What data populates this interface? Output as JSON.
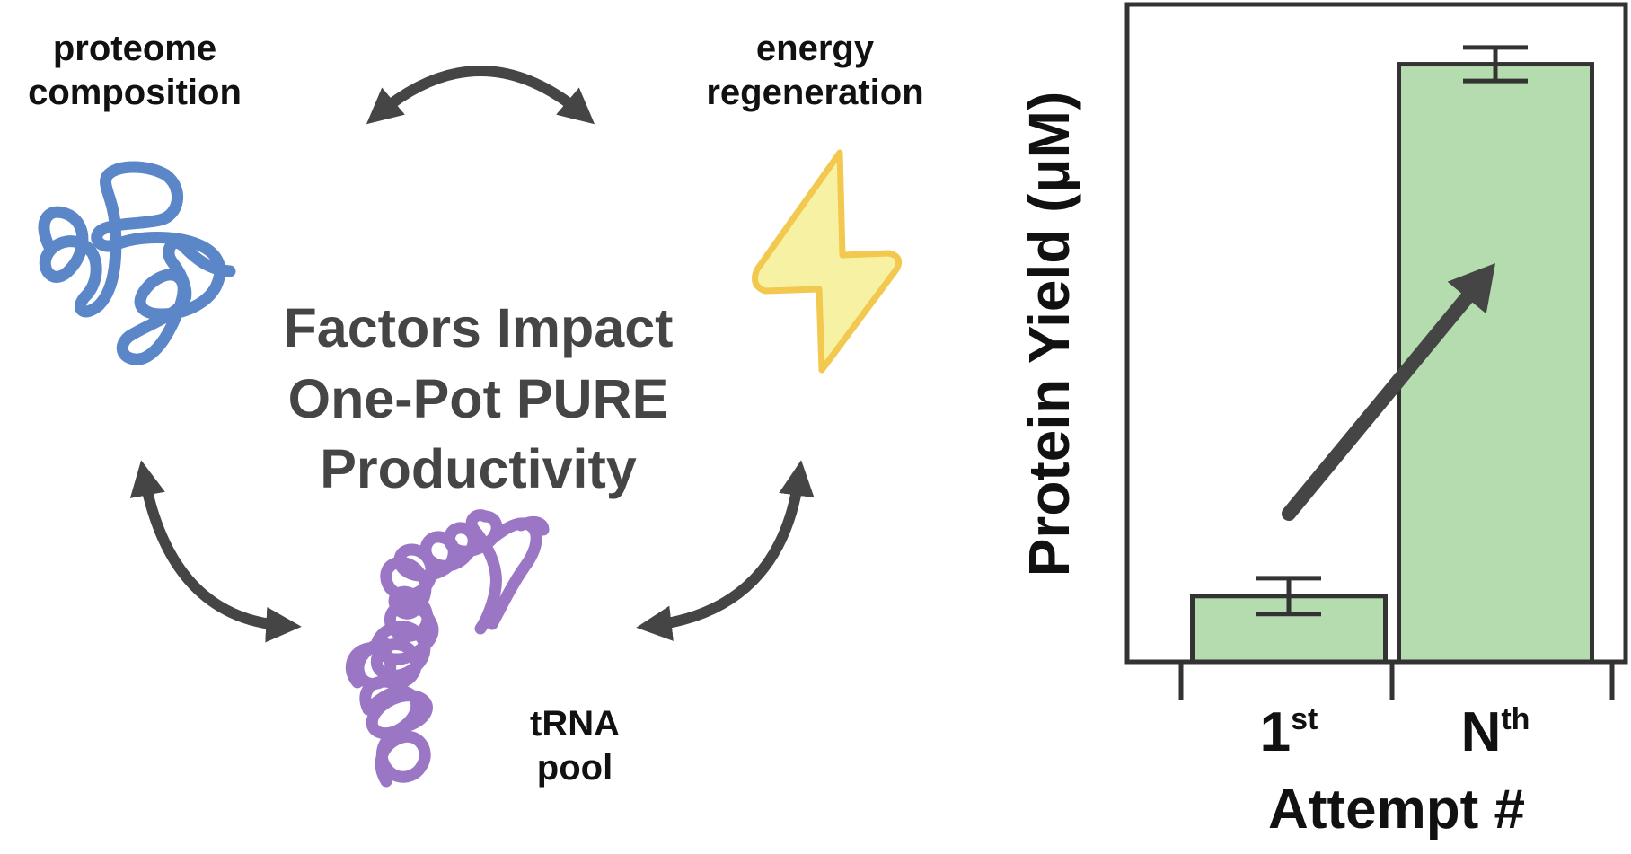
{
  "labels": {
    "proteome": [
      "proteome",
      "composition"
    ],
    "energy": [
      "energy",
      "regeneration"
    ],
    "trna": [
      "tRNA",
      "pool"
    ]
  },
  "center_title": [
    "Factors Impact",
    "One-Pot PURE",
    "Productivity"
  ],
  "colors": {
    "proteome": "#5b86c8",
    "trna": "#9b76c4",
    "bolt_stroke": "#f2c84e",
    "bolt_fill": "#f7f1a3",
    "arrow": "#454545",
    "bar_fill": "#b5dcae",
    "axis": "#333333"
  },
  "icons": [
    "protein-coil-icon",
    "lightning-bolt-icon",
    "trna-coil-icon",
    "double-arrow-icon",
    "trend-arrow-icon"
  ],
  "chart_data": {
    "type": "bar",
    "categories": [
      {
        "base": "1",
        "sup": "st"
      },
      {
        "base": "N",
        "sup": "th"
      }
    ],
    "values": [
      0.11,
      1.0
    ],
    "errors": [
      0.03,
      0.028
    ],
    "ylabel": "Protein Yield (μM)",
    "xlabel": "Attempt #",
    "ylim": [
      0,
      1.1
    ],
    "y_ticks_shown": false,
    "annotation": "upward trend arrow"
  }
}
